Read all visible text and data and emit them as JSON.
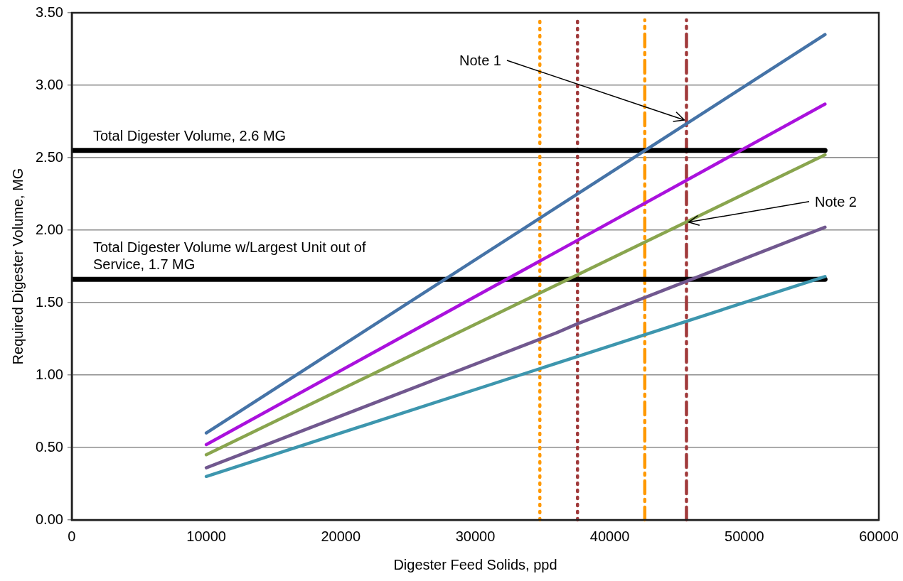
{
  "chart_data": {
    "type": "line",
    "xlabel": "Digester Feed Solids, ppd",
    "ylabel": "Required Digester Volume, MG",
    "xlim": [
      0,
      60000
    ],
    "xticks": [
      0,
      10000,
      20000,
      30000,
      40000,
      50000,
      60000
    ],
    "ylim": [
      0,
      3.5
    ],
    "yticks": [
      {
        "value": 0,
        "label": "0.00"
      },
      {
        "value": 0.5,
        "label": "0.50"
      },
      {
        "value": 1,
        "label": "1.00"
      },
      {
        "value": 1.5,
        "label": "1.50"
      },
      {
        "value": 2,
        "label": "2.00"
      },
      {
        "value": 2.5,
        "label": "2.50"
      },
      {
        "value": 3,
        "label": "3.00"
      },
      {
        "value": 3.5,
        "label": "3.50"
      }
    ],
    "grid": "y",
    "legend": false,
    "marker": "none",
    "line_style": "solid",
    "series": [
      {
        "color": "#4573a7",
        "x": [
          10000,
          56000
        ],
        "values": [
          0.6,
          3.35
        ]
      },
      {
        "color": "#aa11dd",
        "x": [
          10000,
          56000
        ],
        "values": [
          0.52,
          2.87
        ]
      },
      {
        "color": "#89a54e",
        "x": [
          10000,
          56000
        ],
        "values": [
          0.45,
          2.52
        ]
      },
      {
        "color": "#71588f",
        "x": [
          10000,
          36000,
          37500,
          56000
        ],
        "values": [
          0.36,
          1.29,
          1.35,
          2.02
        ]
      },
      {
        "color": "#3d96ae",
        "x": [
          10000,
          56000
        ],
        "values": [
          0.3,
          1.68
        ]
      },
      {
        "name": "Total Digester Volume, 2.6 MG",
        "color": "#000000",
        "x": [
          0,
          56000
        ],
        "values": [
          2.55,
          2.55
        ]
      },
      {
        "name": "Total Digester Volume w/Largest Unit out of Service, 1.7 MG",
        "color": "#000000",
        "x": [
          0,
          56000
        ],
        "values": [
          1.66,
          1.66
        ]
      }
    ],
    "ref_lines": [
      {
        "axis": "x",
        "value": 34800,
        "color": "#ff9900",
        "line_style": "dotted"
      },
      {
        "axis": "x",
        "value": 37600,
        "color": "#a0393a",
        "line_style": "dotted"
      },
      {
        "axis": "x",
        "value": 42600,
        "color": "#ff9900",
        "line_style": "dashed"
      },
      {
        "axis": "x",
        "value": 45700,
        "color": "#a0393a",
        "line_style": "dashed"
      }
    ],
    "annotations": [
      {
        "text": "Note 1",
        "x": 45700,
        "y": 2.75
      },
      {
        "text": "Note 2",
        "x": 45700,
        "y": 2.05
      }
    ]
  }
}
